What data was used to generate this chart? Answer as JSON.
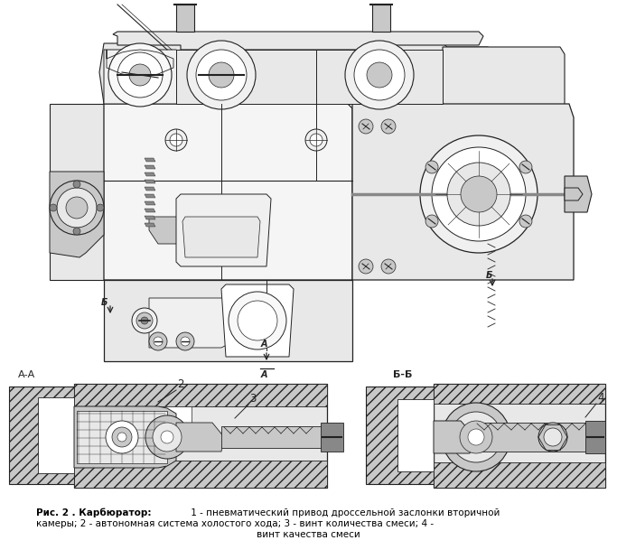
{
  "bg_color": "#ffffff",
  "fig_width": 6.83,
  "fig_height": 6.19,
  "dpi": 100,
  "title_bold": "Рис. 2 . Карбюратор:",
  "caption_line1": " 1 - пневматический привод дроссельной заслонки вторичной",
  "caption_line2": "камеры; 2 - автономная система холостого хода; 3 - винт количества смеси; 4 -",
  "caption_line3": "винт качества смеси",
  "label_AA": "А-А",
  "label_BB": "Б-Б",
  "gray_light": "#e8e8e8",
  "gray_mid": "#c8c8c8",
  "gray_dark": "#888888",
  "gray_darker": "#555555",
  "hatch_color": "#aaaaaa",
  "line_color": "#222222"
}
